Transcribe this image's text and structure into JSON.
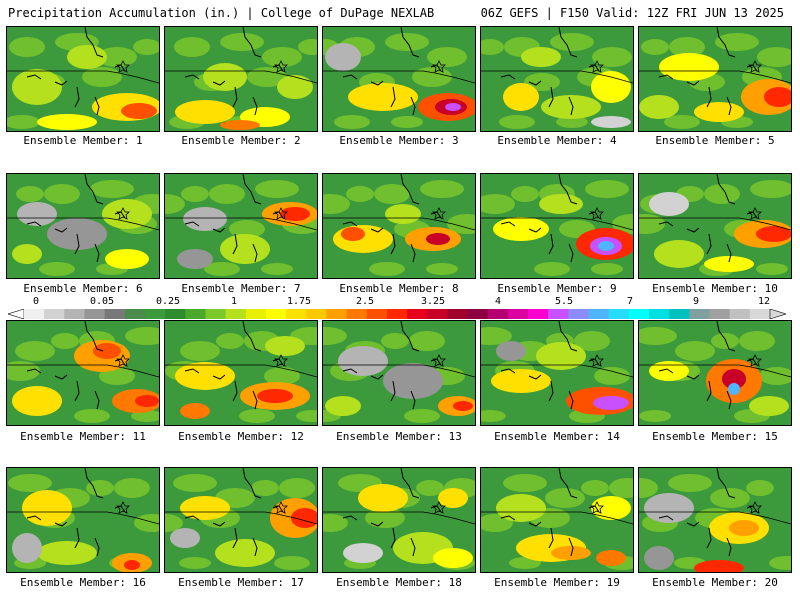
{
  "header": {
    "left": "Precipitation Accumulation (in.) | College of DuPage NEXLAB",
    "right": "06Z GEFS | F150 Valid: 12Z FRI JUN 13 2025"
  },
  "colorbar": {
    "labels": [
      "0",
      "0.05",
      "0.25",
      "1",
      "1.75",
      "2.5",
      "3.25",
      "4",
      "5.5",
      "7",
      "9",
      "12"
    ],
    "colors": [
      "#f0f0f0",
      "#d2d2d2",
      "#b4b4b4",
      "#969696",
      "#787878",
      "#4b8c4b",
      "#3c9a3c",
      "#2e8b2e",
      "#4aa82a",
      "#7dc82a",
      "#b4e01e",
      "#e6f000",
      "#ffff00",
      "#ffe000",
      "#ffc800",
      "#ffa000",
      "#ff7800",
      "#ff5000",
      "#ff2800",
      "#e6001e",
      "#c80028",
      "#a0002d",
      "#8c0040",
      "#b40070",
      "#dc00a0",
      "#ff00d2",
      "#c850ff",
      "#8c8cff",
      "#50b4ff",
      "#28dcff",
      "#00ffff",
      "#00e0e0",
      "#00c0c0",
      "#80a0a0",
      "#a0a0a0",
      "#c0c0c0",
      "#d8d8d8"
    ]
  },
  "members": [
    {
      "label": "Ensemble Member: 1"
    },
    {
      "label": "Ensemble Member: 2"
    },
    {
      "label": "Ensemble Member: 3"
    },
    {
      "label": "Ensemble Member: 4"
    },
    {
      "label": "Ensemble Member: 5"
    },
    {
      "label": "Ensemble Member: 6"
    },
    {
      "label": "Ensemble Member: 7"
    },
    {
      "label": "Ensemble Member: 8"
    },
    {
      "label": "Ensemble Member: 9"
    },
    {
      "label": "Ensemble Member: 10"
    },
    {
      "label": "Ensemble Member: 11"
    },
    {
      "label": "Ensemble Member: 12"
    },
    {
      "label": "Ensemble Member: 13"
    },
    {
      "label": "Ensemble Member: 14"
    },
    {
      "label": "Ensemble Member: 15"
    },
    {
      "label": "Ensemble Member: 16"
    },
    {
      "label": "Ensemble Member: 17"
    },
    {
      "label": "Ensemble Member: 18"
    },
    {
      "label": "Ensemble Member: 19"
    },
    {
      "label": "Ensemble Member: 20"
    }
  ]
}
